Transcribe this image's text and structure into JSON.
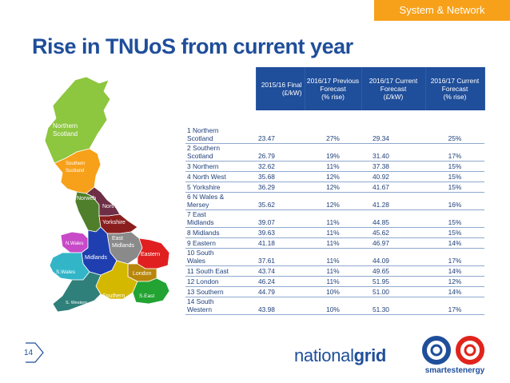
{
  "header": {
    "section_tag": "System & Network",
    "title": "Rise in TNUoS from current year"
  },
  "map": {
    "regions": [
      {
        "name": "Northern Scotland",
        "line1": "Northern",
        "line2": "Scotland",
        "color": "#8dc63f"
      },
      {
        "name": "Southern Scotland",
        "line1": "Southern",
        "line2": "Scotland",
        "color": "#f7a11a"
      },
      {
        "name": "Norweb",
        "line1": "Norweb",
        "color": "#4f7f2a"
      },
      {
        "name": "Northern",
        "line1": "Northern",
        "color": "#6d2e46"
      },
      {
        "name": "Yorkshire",
        "line1": "Yorkshire",
        "color": "#8a1e1e"
      },
      {
        "name": "N Wales",
        "line1": "N.Wales",
        "color": "#c84ac8"
      },
      {
        "name": "East Midlands",
        "line1": "East",
        "line2": "Midlands",
        "color": "#8a8a8a"
      },
      {
        "name": "Midlands",
        "line1": "Midlands",
        "color": "#1f3fb0"
      },
      {
        "name": "Eastern",
        "line1": "Eastern",
        "color": "#e02020"
      },
      {
        "name": "S Wales",
        "line1": "S.Wales",
        "color": "#33b5c8"
      },
      {
        "name": "London",
        "line1": "London",
        "color": "#b8860b"
      },
      {
        "name": "Southern",
        "line1": "Southern",
        "color": "#d4b800"
      },
      {
        "name": "S East",
        "line1": "S.East",
        "color": "#22a332"
      },
      {
        "name": "S Western",
        "line1": "S. Western",
        "color": "#2f7f7a"
      }
    ]
  },
  "table": {
    "headers": [
      "2015/16 Final (£/kW)",
      "2016/17 Previous Forecast (% rise)",
      "2016/17 Current Forecast (£/kW)",
      "2016/17 Current Forecast (% rise)"
    ],
    "header_lines": [
      [
        "2015/16 Final",
        "(£/kW)"
      ],
      [
        "2016/17 Previous",
        "Forecast",
        "(% rise)"
      ],
      [
        "2016/17 Current",
        "Forecast",
        "(£/kW)"
      ],
      [
        "2016/17 Current",
        "Forecast",
        "(% rise)"
      ]
    ],
    "rows": [
      {
        "region_l1": "1 Northern",
        "region_l2": "Scotland",
        "final": "23.47",
        "prev": "27%",
        "curr": "29.34",
        "rise": "25%"
      },
      {
        "region_l1": "2 Southern",
        "region_l2": "Scotland",
        "final": "26.79",
        "prev": "19%",
        "curr": "31.40",
        "rise": "17%"
      },
      {
        "region_l1": "3 Northern",
        "region_l2": "",
        "final": "32.62",
        "prev": "11%",
        "curr": "37.38",
        "rise": "15%"
      },
      {
        "region_l1": "4 North West",
        "region_l2": "",
        "final": "35.68",
        "prev": "12%",
        "curr": "40.92",
        "rise": "15%"
      },
      {
        "region_l1": "5 Yorkshire",
        "region_l2": "",
        "final": "36.29",
        "prev": "12%",
        "curr": "41.67",
        "rise": "15%"
      },
      {
        "region_l1": "6 N Wales &",
        "region_l2": "Mersey",
        "final": "35.62",
        "prev": "12%",
        "curr": "41.28",
        "rise": "16%"
      },
      {
        "region_l1": "7 East",
        "region_l2": "Midlands",
        "final": "39.07",
        "prev": "11%",
        "curr": "44.85",
        "rise": "15%"
      },
      {
        "region_l1": "8 Midlands",
        "region_l2": "",
        "final": "39.63",
        "prev": "11%",
        "curr": "45.62",
        "rise": "15%"
      },
      {
        "region_l1": "9 Eastern",
        "region_l2": "",
        "final": "41.18",
        "prev": "11%",
        "curr": "46.97",
        "rise": "14%"
      },
      {
        "region_l1": "10 South",
        "region_l2": "Wales",
        "final": "37.61",
        "prev": "11%",
        "curr": "44.09",
        "rise": "17%"
      },
      {
        "region_l1": "11 South East",
        "region_l2": "",
        "final": "43.74",
        "prev": "11%",
        "curr": "49.65",
        "rise": "14%"
      },
      {
        "region_l1": "12 London",
        "region_l2": "",
        "final": "46.24",
        "prev": "11%",
        "curr": "51.95",
        "rise": "12%"
      },
      {
        "region_l1": "13 Southern",
        "region_l2": "",
        "final": "44.79",
        "prev": "10%",
        "curr": "51.00",
        "rise": "14%"
      },
      {
        "region_l1": "14 South",
        "region_l2": "Western",
        "final": "43.98",
        "prev": "10%",
        "curr": "51.30",
        "rise": "17%"
      }
    ]
  },
  "footer": {
    "page_number": "14",
    "logo_national_a": "national",
    "logo_national_b": "grid",
    "logo_smartest": "smartestenergy"
  },
  "colors": {
    "brand_blue": "#1f4e9a",
    "accent_orange": "#f7a11a",
    "logo_red": "#e0241c"
  }
}
